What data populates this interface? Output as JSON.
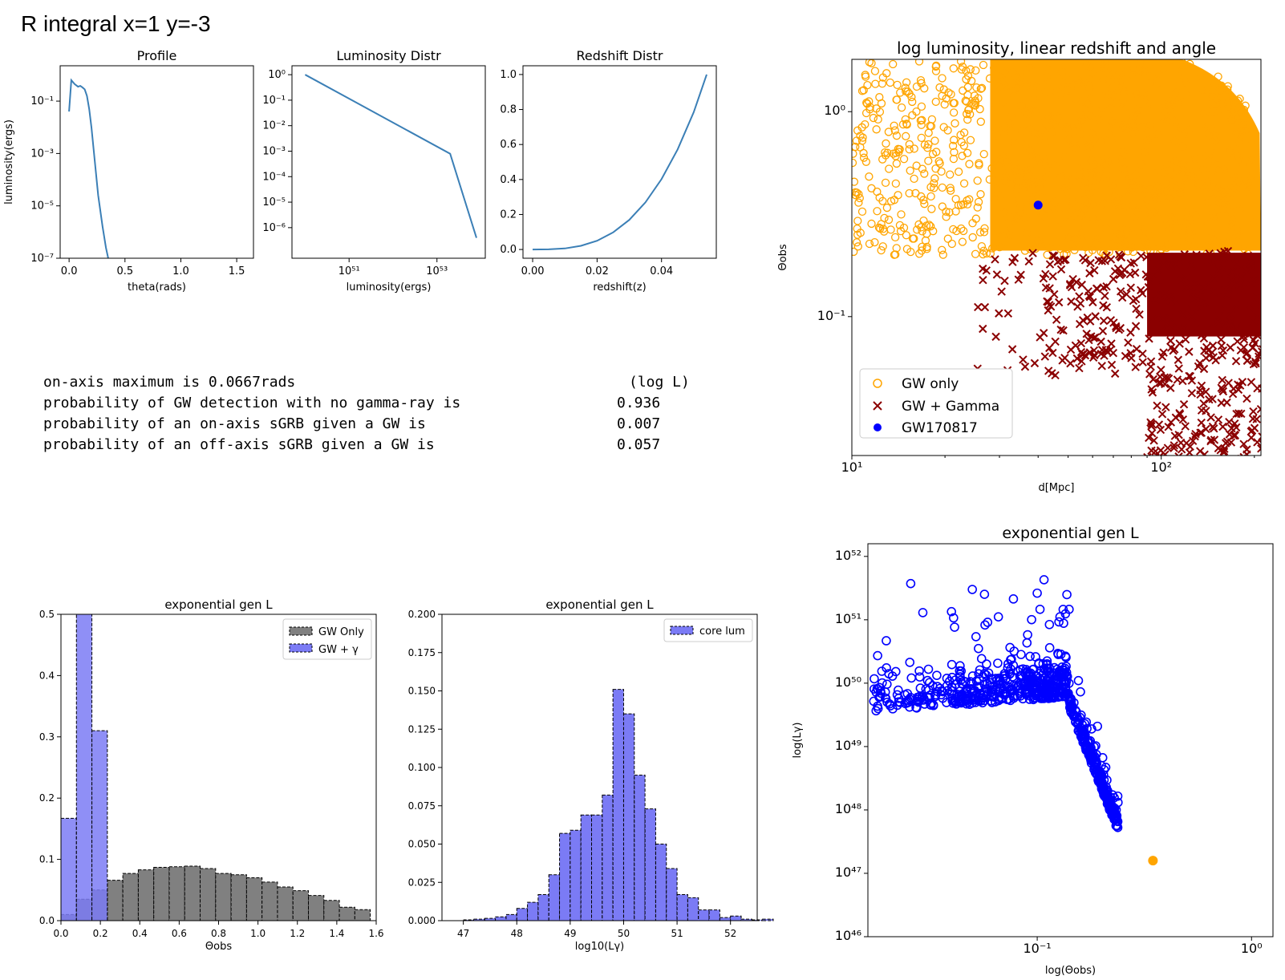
{
  "page_title": "R integral x=1 y=-3",
  "stats": {
    "rows": [
      {
        "label": "on-axis maximum is 0.0667rads",
        "value": "(log L)"
      },
      {
        "label": "probability of GW detection with no gamma-ray is",
        "value": "0.936"
      },
      {
        "label": "probability of an on-axis sGRB given a GW is",
        "value": "0.007"
      },
      {
        "label": "probability of an off-axis sGRB given a GW is",
        "value": "0.057"
      }
    ]
  },
  "colors": {
    "line": "#3b7fb6",
    "orange": "#ffa500",
    "darkred": "#8b0000",
    "blue": "#0000ff",
    "hist_blue": "#7b7bf5",
    "hist_gray": "#808080",
    "overlap": "#4040c0"
  },
  "chart_data": [
    {
      "id": "profile",
      "type": "line",
      "title": "Profile",
      "xlabel": "theta(rads)",
      "ylabel": "luminosity(ergs)",
      "xlim": [
        -0.08,
        1.65
      ],
      "ylim_log10": [
        -7,
        0.35
      ],
      "y_scale": "log",
      "xticks": [
        0.0,
        0.5,
        1.0,
        1.5
      ],
      "xtick_labels": [
        "0.0",
        "0.5",
        "1.0",
        "1.5"
      ],
      "yticks_log10": [
        -1,
        -3,
        -5,
        -7
      ],
      "x": [
        0.0,
        0.02,
        0.05,
        0.08,
        0.1,
        0.12,
        0.14,
        0.16,
        0.18,
        0.2,
        0.23,
        0.26,
        0.3,
        0.33,
        0.36
      ],
      "y_log10": [
        -1.4,
        -0.2,
        -0.35,
        -0.45,
        -0.42,
        -0.48,
        -0.55,
        -0.8,
        -1.3,
        -2.0,
        -3.3,
        -4.6,
        -5.8,
        -6.6,
        -7.2
      ]
    },
    {
      "id": "luminosity-distr",
      "type": "line",
      "title": "Luminosity Distr",
      "xlabel": "luminosity(ergs)",
      "x_scale": "log",
      "y_scale": "log",
      "xlim_log10": [
        49.7,
        54.1
      ],
      "ylim_log10": [
        -7.2,
        0.35
      ],
      "xticks_log10": [
        51,
        53
      ],
      "yticks_log10": [
        0,
        -1,
        -2,
        -3,
        -4,
        -5,
        -6
      ],
      "x_log10": [
        50.0,
        53.3,
        53.9
      ],
      "y_log10": [
        0.0,
        -3.1,
        -6.4
      ]
    },
    {
      "id": "redshift-distr",
      "type": "line",
      "title": "Redshift Distr",
      "xlabel": "redshift(z)",
      "xlim": [
        -0.003,
        0.057
      ],
      "ylim": [
        -0.05,
        1.05
      ],
      "xticks": [
        0.0,
        0.02,
        0.04
      ],
      "xtick_labels": [
        "0.00",
        "0.02",
        "0.04"
      ],
      "yticks": [
        0.0,
        0.2,
        0.4,
        0.6,
        0.8,
        1.0
      ],
      "ytick_labels": [
        "0.0",
        "0.2",
        "0.4",
        "0.6",
        "0.8",
        "1.0"
      ],
      "x": [
        0.0,
        0.005,
        0.01,
        0.015,
        0.02,
        0.025,
        0.03,
        0.035,
        0.04,
        0.045,
        0.05,
        0.054
      ],
      "y": [
        0.0,
        0.0008,
        0.006,
        0.021,
        0.05,
        0.098,
        0.169,
        0.269,
        0.402,
        0.572,
        0.785,
        1.0
      ]
    },
    {
      "id": "log-luminosity-scatter",
      "type": "scatter",
      "title": "log luminosity, linear redshift and angle",
      "xlabel": "d[Mpc]",
      "ylabel": "Θobs",
      "x_scale": "log",
      "y_scale": "log",
      "xlim": [
        10,
        210
      ],
      "ylim": [
        0.021,
        1.8
      ],
      "xticks": [
        10,
        100
      ],
      "yticks": [
        1,
        0.1
      ],
      "legend": {
        "position": "lower-left",
        "entries": [
          "GW only",
          "GW + Gamma",
          "GW170817"
        ]
      },
      "series": [
        {
          "name": "GW only",
          "marker": "open-circle",
          "color": "#ffa500"
        },
        {
          "name": "GW + Gamma",
          "marker": "x",
          "color": "#8b0000"
        },
        {
          "name": "GW170817",
          "marker": "filled-circle",
          "color": "#0000ff",
          "x": [
            40
          ],
          "y": [
            0.35
          ]
        }
      ]
    },
    {
      "id": "hist-theta",
      "type": "bar",
      "title": "exponential gen L",
      "xlabel": "Θobs",
      "xlim": [
        0.0,
        1.6
      ],
      "ylim": [
        0.0,
        0.5
      ],
      "xticks": [
        0.0,
        0.2,
        0.4,
        0.6,
        0.8,
        1.0,
        1.2,
        1.4,
        1.6
      ],
      "xtick_labels": [
        "0.0",
        "0.2",
        "0.4",
        "0.6",
        "0.8",
        "1.0",
        "1.2",
        "1.4",
        "1.6"
      ],
      "yticks": [
        0.0,
        0.1,
        0.2,
        0.3,
        0.4,
        0.5
      ],
      "ytick_labels": [
        "0.0",
        "0.1",
        "0.2",
        "0.3",
        "0.4",
        "0.5"
      ],
      "bin_width": 0.0785,
      "legend": {
        "position": "top-right",
        "entries": [
          "GW Only",
          "GW + γ"
        ]
      },
      "series": [
        {
          "name": "GW Only",
          "color": "#808080",
          "values": [
            0.01,
            0.035,
            0.05,
            0.066,
            0.077,
            0.083,
            0.087,
            0.088,
            0.089,
            0.085,
            0.077,
            0.075,
            0.07,
            0.063,
            0.055,
            0.049,
            0.041,
            0.033,
            0.022,
            0.018
          ]
        },
        {
          "name": "GW + γ",
          "color": "#7b7bf5",
          "values": [
            0.167,
            0.5,
            0.31,
            0,
            0,
            0,
            0,
            0,
            0,
            0,
            0,
            0,
            0,
            0,
            0,
            0,
            0,
            0,
            0,
            0
          ]
        }
      ]
    },
    {
      "id": "hist-core-lum",
      "type": "bar",
      "title": "exponential gen L",
      "xlabel": "log10(Lγ)",
      "xlim": [
        46.6,
        52.5
      ],
      "ylim": [
        0.0,
        0.2
      ],
      "xticks": [
        47,
        48,
        49,
        50,
        51,
        52
      ],
      "yticks": [
        0.0,
        0.025,
        0.05,
        0.075,
        0.1,
        0.125,
        0.15,
        0.175,
        0.2
      ],
      "ytick_labels": [
        "0.000",
        "0.025",
        "0.050",
        "0.075",
        "0.100",
        "0.125",
        "0.150",
        "0.175",
        "0.200"
      ],
      "bin_start": 47.0,
      "bin_width": 0.2,
      "legend": {
        "position": "top-right",
        "entries": [
          "core lum"
        ]
      },
      "series": [
        {
          "name": "core lum",
          "color": "#7b7bf5",
          "values": [
            0.0005,
            0.001,
            0.0015,
            0.0025,
            0.004,
            0.008,
            0.012,
            0.017,
            0.03,
            0.057,
            0.059,
            0.069,
            0.069,
            0.082,
            0.151,
            0.135,
            0.095,
            0.073,
            0.05,
            0.034,
            0.017,
            0.015,
            0.007,
            0.007,
            0.002,
            0.003,
            0.001,
            0.0005,
            0.001
          ]
        }
      ]
    },
    {
      "id": "lum-vs-theta-scatter",
      "type": "scatter",
      "title": "exponential gen L",
      "xlabel": "log(Θobs)",
      "ylabel": "log(Lγ)",
      "x_scale": "log",
      "y_scale": "log",
      "xlim_log10": [
        -1.79,
        0.1
      ],
      "ylim_log10": [
        46,
        52.2
      ],
      "xticks_log10": [
        -1,
        0
      ],
      "yticks_log10": [
        52,
        51,
        50,
        49,
        48,
        47,
        46
      ],
      "series": [
        {
          "name": "",
          "marker": "open-circle",
          "color": "#0000ff"
        },
        {
          "name": "",
          "marker": "filled-circle",
          "color": "#ffa500",
          "x_log10": [
            -0.46
          ],
          "y_log10": [
            47.2
          ]
        }
      ]
    }
  ]
}
